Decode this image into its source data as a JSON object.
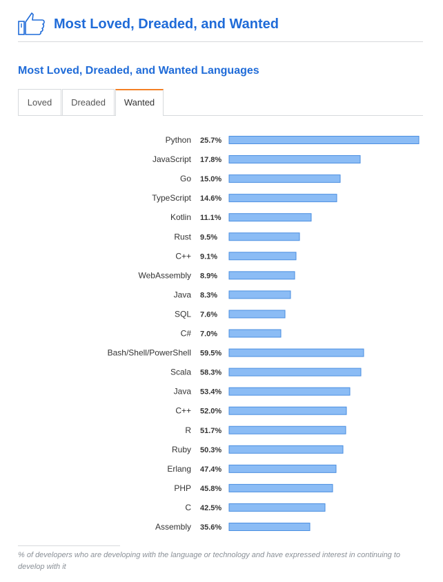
{
  "header": {
    "title": "Most Loved, Dreaded, and Wanted",
    "icon": "thumbs-up-icon"
  },
  "section": {
    "title": "Most Loved, Dreaded, and Wanted Languages"
  },
  "tabs": [
    {
      "label": "Loved",
      "active": false
    },
    {
      "label": "Dreaded",
      "active": false
    },
    {
      "label": "Wanted",
      "active": true
    }
  ],
  "colors": {
    "accent": "#1f6bd8",
    "bar_fill": "#8bbcf5",
    "bar_border": "#4a8ee0",
    "tab_active": "#f48024"
  },
  "chart_data": {
    "type": "bar",
    "orientation": "horizontal",
    "categories": [
      "Python",
      "JavaScript",
      "Go",
      "TypeScript",
      "Kotlin",
      "Rust",
      "C++",
      "WebAssembly",
      "Java",
      "SQL",
      "C#",
      "Bash/Shell/PowerShell",
      "Scala",
      "Java",
      "C++",
      "R",
      "Ruby",
      "Erlang",
      "PHP",
      "C",
      "Assembly"
    ],
    "values": [
      25.7,
      17.8,
      15.0,
      14.6,
      11.1,
      9.5,
      9.1,
      8.9,
      8.3,
      7.6,
      7.0,
      59.5,
      58.3,
      53.4,
      52.0,
      51.7,
      50.3,
      47.4,
      45.8,
      42.5,
      35.6
    ],
    "value_labels": [
      "25.7%",
      "17.8%",
      "15.0%",
      "14.6%",
      "11.1%",
      "9.5%",
      "9.1%",
      "8.9%",
      "8.3%",
      "7.6%",
      "7.0%",
      "59.5%",
      "58.3%",
      "53.4%",
      "52.0%",
      "51.7%",
      "50.3%",
      "47.4%",
      "45.8%",
      "42.5%",
      "35.6%"
    ],
    "title": "",
    "xlabel": "",
    "ylabel": ""
  },
  "footnote": "% of developers who are developing with the language or technology and have expressed interest in continuing to develop with it"
}
